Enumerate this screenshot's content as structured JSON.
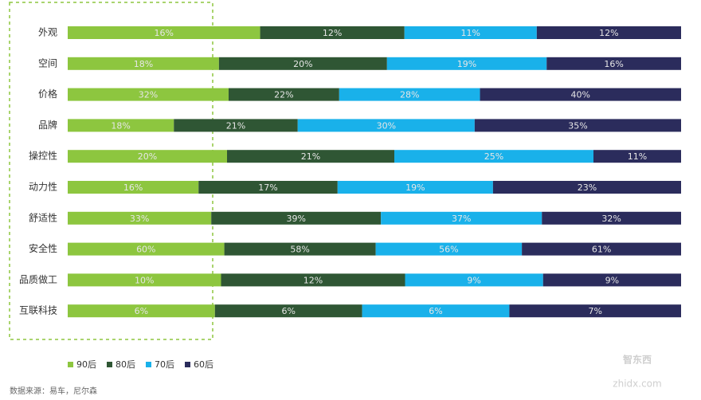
{
  "chart_data": {
    "type": "bar",
    "orientation": "horizontal",
    "stacking": "percent",
    "categories": [
      "外观",
      "空间",
      "价格",
      "品牌",
      "操控性",
      "动力性",
      "舒适性",
      "安全性",
      "品质做工",
      "互联科技"
    ],
    "series": [
      {
        "name": "90后",
        "color": "#8dc63f",
        "values": [
          16,
          18,
          32,
          18,
          20,
          16,
          33,
          60,
          10,
          6
        ],
        "value_labels": [
          "16%",
          "18%",
          "32%",
          "18%",
          "20%",
          "16%",
          "33%",
          "60%",
          "10%",
          "6%"
        ]
      },
      {
        "name": "80后",
        "color": "#2f5634",
        "values": [
          12,
          20,
          22,
          21,
          21,
          17,
          39,
          58,
          12,
          6
        ],
        "value_labels": [
          "12%",
          "20%",
          "22%",
          "21%",
          "21%",
          "17%",
          "39%",
          "58%",
          "12%",
          "6%"
        ]
      },
      {
        "name": "70后",
        "color": "#19b1ea",
        "values": [
          11,
          19,
          28,
          30,
          25,
          19,
          37,
          56,
          9,
          6
        ],
        "value_labels": [
          "11%",
          "19%",
          "28%",
          "30%",
          "25%",
          "19%",
          "37%",
          "56%",
          "9%",
          "6%"
        ]
      },
      {
        "name": "60后",
        "color": "#2b2c5c",
        "values": [
          12,
          16,
          40,
          35,
          11,
          23,
          32,
          61,
          9,
          7
        ],
        "value_labels": [
          "12%",
          "16%",
          "40%",
          "35%",
          "11%",
          "23%",
          "32%",
          "61%",
          "9%",
          "7%"
        ]
      }
    ],
    "legend": "bottom-left"
  },
  "source": "数据来源：易车，尼尔森",
  "watermark": {
    "logo": "智东西",
    "url": "zhidx.com"
  }
}
